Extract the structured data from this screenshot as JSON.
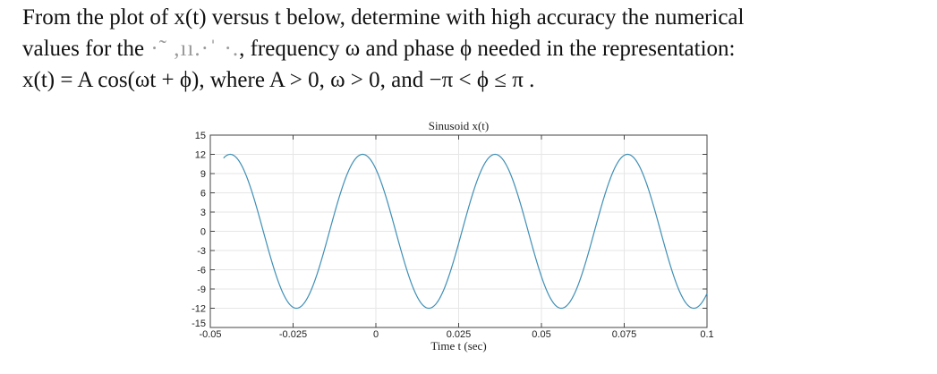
{
  "problem": {
    "line1": "From the plot of x(t) versus t below, determine with high accuracy the numerical",
    "line2_start": "values for the",
    "line2_smudge": " ·˜ ,ıı.·ˈ ·.",
    "line2_end": ", frequency ω  and phase ϕ needed in the representation:",
    "line3": "x(t) = A cos(ωt + ϕ), where A > 0, ω > 0, and −π < ϕ ≤ π ."
  },
  "chart_data": {
    "type": "line",
    "title": "Sinusoid x(t)",
    "xlabel": "Time t (sec)",
    "ylabel": "",
    "xlim": [
      -0.05,
      0.1
    ],
    "ylim": [
      -15,
      15
    ],
    "xticks": [
      -0.05,
      -0.025,
      0,
      0.025,
      0.05,
      0.075,
      0.1
    ],
    "xtick_labels": [
      "-0.05",
      "-0.025",
      "0",
      "0.025",
      "0.05",
      "0.075",
      "0.1"
    ],
    "yticks": [
      15,
      12,
      9,
      6,
      3,
      0,
      -3,
      -6,
      -9,
      -12,
      -15
    ],
    "ytick_labels": [
      "15",
      "12",
      "9",
      "6",
      "3",
      "0",
      "-3",
      "-6",
      "-9",
      "-12",
      "-15"
    ],
    "grid": true,
    "series": [
      {
        "color": "#3f8fb5",
        "amplitude": 12,
        "frequency_rad_per_s": 157.08,
        "phase_rad": 0.6283,
        "x_range": [
          -0.046,
          0.1
        ]
      }
    ]
  }
}
